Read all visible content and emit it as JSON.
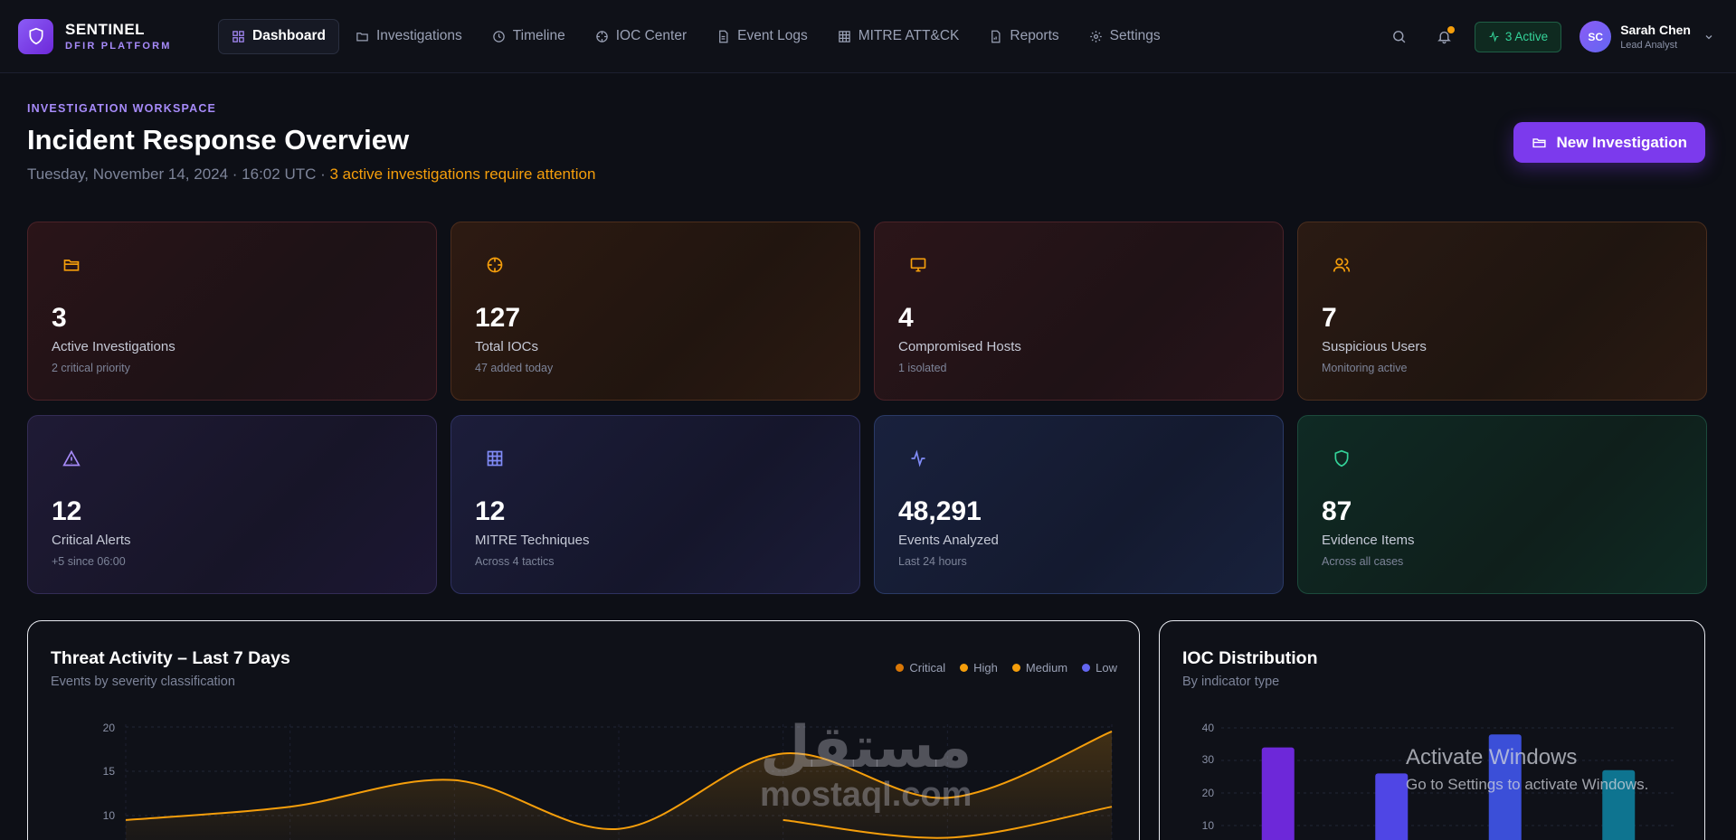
{
  "brand": {
    "name": "SENTINEL",
    "tagline": "DFIR PLATFORM",
    "logo_icon": "shield-icon"
  },
  "nav": [
    {
      "label": "Dashboard",
      "icon": "dashboard-icon",
      "active": true
    },
    {
      "label": "Investigations",
      "icon": "folder-icon"
    },
    {
      "label": "Timeline",
      "icon": "clock-icon"
    },
    {
      "label": "IOC Center",
      "icon": "crosshair-icon"
    },
    {
      "label": "Event Logs",
      "icon": "document-icon"
    },
    {
      "label": "MITRE ATT&CK",
      "icon": "grid-icon"
    },
    {
      "label": "Reports",
      "icon": "report-icon"
    },
    {
      "label": "Settings",
      "icon": "gear-icon"
    }
  ],
  "topbar": {
    "active_label": "3 Active"
  },
  "user": {
    "initials": "SC",
    "name": "Sarah Chen",
    "role": "Lead Analyst"
  },
  "header": {
    "eyebrow": "INVESTIGATION WORKSPACE",
    "title": "Incident Response Overview",
    "date": "Tuesday, November 14, 2024 · 16:02 UTC · ",
    "alert": "3 active investigations require attention",
    "new_button": "New Investigation"
  },
  "stats": [
    {
      "value": "3",
      "label": "Active Investigations",
      "sub": "2 critical priority",
      "icon": "folder-open-icon",
      "color": "#f59e0b"
    },
    {
      "value": "127",
      "label": "Total IOCs",
      "sub": "47 added today",
      "icon": "crosshair-icon",
      "color": "#f59e0b"
    },
    {
      "value": "4",
      "label": "Compromised Hosts",
      "sub": "1 isolated",
      "icon": "monitor-icon",
      "color": "#f59e0b"
    },
    {
      "value": "7",
      "label": "Suspicious Users",
      "sub": "Monitoring active",
      "icon": "users-icon",
      "color": "#f59e0b"
    },
    {
      "value": "12",
      "label": "Critical Alerts",
      "sub": "+5 since 06:00",
      "icon": "warning-icon",
      "color": "#a78bfa"
    },
    {
      "value": "12",
      "label": "MITRE Techniques",
      "sub": "Across 4 tactics",
      "icon": "grid-icon",
      "color": "#818cf8"
    },
    {
      "value": "48,291",
      "label": "Events Analyzed",
      "sub": "Last 24 hours",
      "icon": "activity-icon",
      "color": "#818cf8"
    },
    {
      "value": "87",
      "label": "Evidence Items",
      "sub": "Across all cases",
      "icon": "shield-icon",
      "color": "#34d399"
    }
  ],
  "threat_panel": {
    "title": "Threat Activity – Last 7 Days",
    "subtitle": "Events by severity classification",
    "legend": [
      {
        "name": "Critical",
        "color": "#d97706"
      },
      {
        "name": "High",
        "color": "#f59e0b"
      },
      {
        "name": "Medium",
        "color": "#f59e0b"
      },
      {
        "name": "Low",
        "color": "#6366f1"
      }
    ],
    "yticks": [
      "20",
      "15",
      "10"
    ]
  },
  "ioc_panel": {
    "title": "IOC Distribution",
    "subtitle": "By indicator type",
    "yticks": [
      "40",
      "30",
      "20",
      "10"
    ]
  },
  "chart_data": [
    {
      "type": "area",
      "title": "Threat Activity – Last 7 Days",
      "subtitle": "Events by severity classification",
      "ylim": [
        0,
        20
      ],
      "series": [
        {
          "name": "High",
          "values": [
            9.5,
            11,
            14,
            8.5,
            17,
            12,
            19.5
          ]
        },
        {
          "name": "Medium",
          "values": [
            0,
            0,
            0,
            0,
            9.5,
            7.5,
            11
          ]
        }
      ]
    },
    {
      "type": "bar",
      "title": "IOC Distribution",
      "subtitle": "By indicator type",
      "ylim": [
        0,
        40
      ],
      "values": [
        34,
        26,
        38,
        27
      ],
      "colors": [
        "#6d28d9",
        "#4f46e5",
        "#3b4fd8",
        "#0e7490"
      ]
    }
  ],
  "watermark": {
    "arabic": "مستقل",
    "latin": "mostaql.com"
  },
  "os_notice": {
    "title": "Activate Windows",
    "body": "Go to Settings to activate Windows."
  }
}
